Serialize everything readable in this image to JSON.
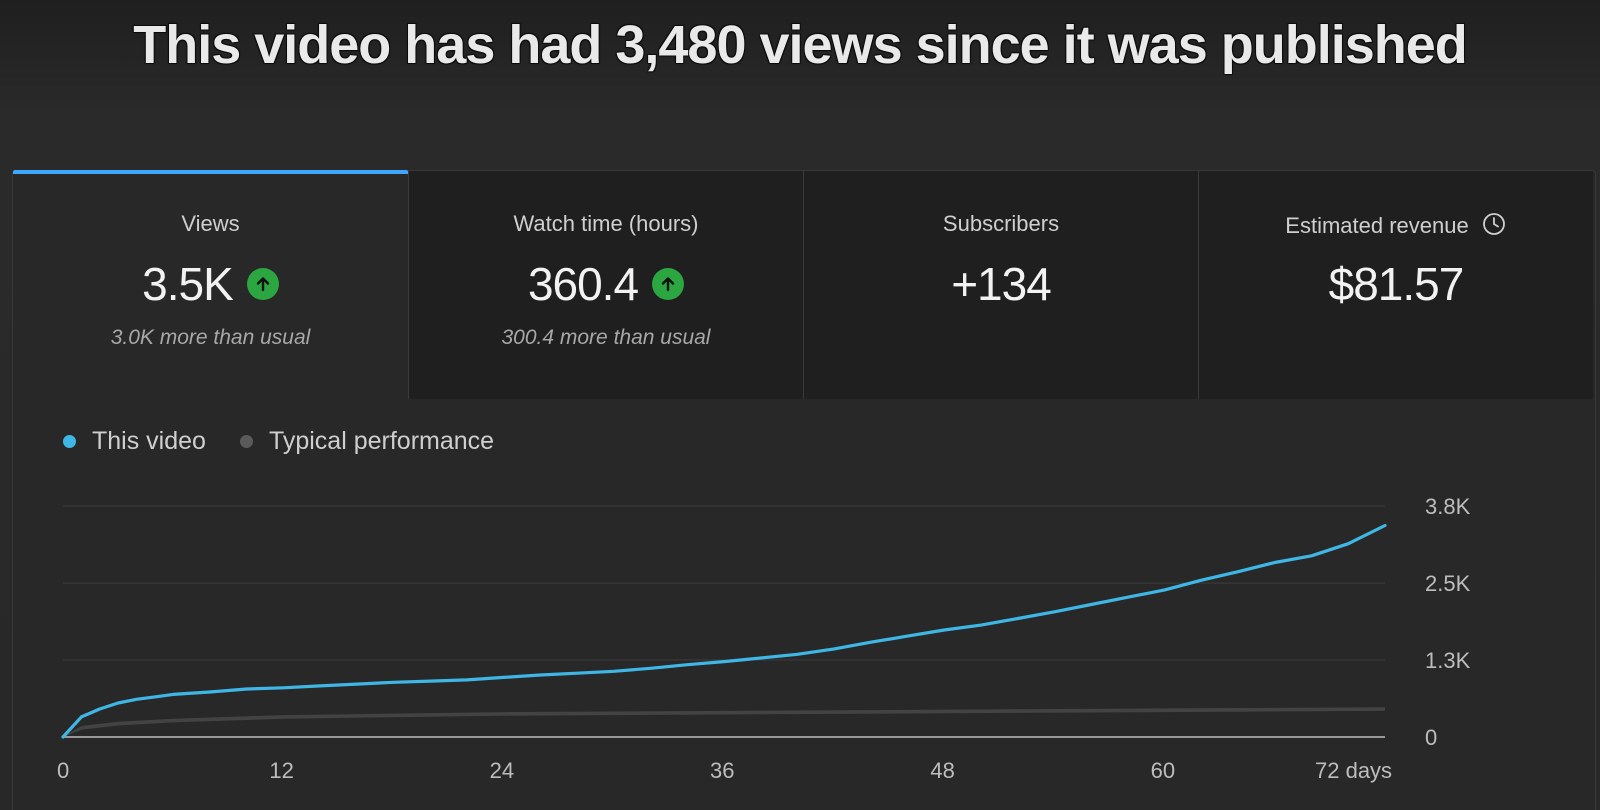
{
  "headline": "This video has had 3,480 views since it was published",
  "tabs": [
    {
      "label": "Views",
      "value": "3.5K",
      "trend": "up",
      "sub": "3.0K more than usual"
    },
    {
      "label": "Watch time (hours)",
      "value": "360.4",
      "trend": "up",
      "sub": "300.4 more than usual"
    },
    {
      "label": "Subscribers",
      "value": "+134",
      "trend": "",
      "sub": ""
    },
    {
      "label": "Estimated revenue",
      "value": "$81.57",
      "trend": "",
      "sub": "",
      "icon": "clock-icon"
    }
  ],
  "legend": {
    "this_video": "This video",
    "typical": "Typical performance"
  },
  "colors": {
    "this_video": "#3fb7e6",
    "typical": "#5a5a5a",
    "accent": "#3ea6ff",
    "up": "#2ba640"
  },
  "chart_data": {
    "type": "line",
    "xlabel": "",
    "ylabel": "",
    "x_ticks": [
      "0",
      "12",
      "24",
      "36",
      "48",
      "60",
      "72 days"
    ],
    "x_tick_values": [
      0,
      12,
      24,
      36,
      48,
      60,
      72
    ],
    "y_ticks": [
      "0",
      "1.3K",
      "2.5K",
      "3.8K"
    ],
    "y_tick_values": [
      0,
      1266,
      2532,
      3800
    ],
    "xlim": [
      0,
      72
    ],
    "ylim": [
      0,
      3800
    ],
    "grid": true,
    "series": [
      {
        "name": "This video",
        "x": [
          0,
          1,
          2,
          3,
          4,
          5,
          6,
          8,
          10,
          12,
          14,
          16,
          18,
          20,
          22,
          24,
          26,
          28,
          30,
          32,
          34,
          36,
          38,
          40,
          42,
          44,
          46,
          48,
          50,
          52,
          54,
          56,
          58,
          60,
          62,
          64,
          66,
          68,
          70,
          72
        ],
        "y": [
          0,
          330,
          460,
          560,
          620,
          660,
          700,
          740,
          790,
          810,
          840,
          870,
          900,
          920,
          940,
          980,
          1020,
          1050,
          1080,
          1130,
          1190,
          1240,
          1300,
          1360,
          1450,
          1560,
          1660,
          1760,
          1840,
          1950,
          2060,
          2180,
          2300,
          2420,
          2580,
          2720,
          2870,
          2980,
          3180,
          3480
        ]
      },
      {
        "name": "Typical performance",
        "x": [
          0,
          1,
          3,
          6,
          12,
          24,
          36,
          48,
          60,
          72
        ],
        "y": [
          0,
          150,
          220,
          270,
          330,
          380,
          400,
          420,
          440,
          460
        ],
        "band": 60
      }
    ]
  }
}
